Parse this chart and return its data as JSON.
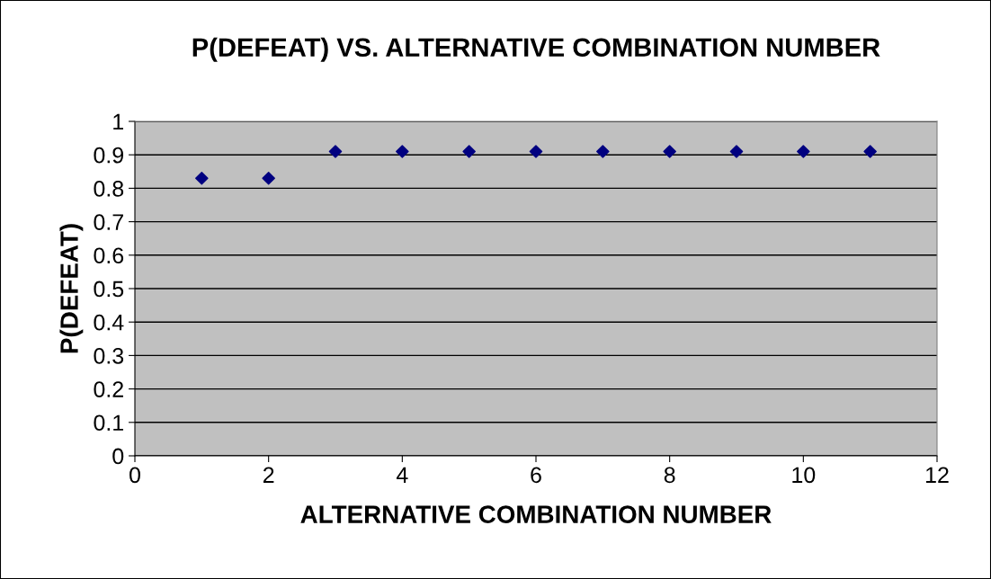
{
  "chart_data": {
    "type": "scatter",
    "title": "P(DEFEAT) VS. ALTERNATIVE COMBINATION NUMBER",
    "xlabel": "ALTERNATIVE COMBINATION NUMBER",
    "ylabel": "P(DEFEAT)",
    "x": [
      1,
      2,
      3,
      4,
      5,
      6,
      7,
      8,
      9,
      10,
      11
    ],
    "series": [
      {
        "color": "#000080",
        "values": [
          0.83,
          0.83,
          0.91,
          0.91,
          0.91,
          0.91,
          0.91,
          0.91,
          0.91,
          0.91,
          0.91
        ]
      }
    ],
    "xlim": [
      0,
      12
    ],
    "xticks": [
      0,
      2,
      4,
      6,
      8,
      10,
      12
    ],
    "ylim": [
      0,
      1
    ],
    "yticks": [
      0,
      0.1,
      0.2,
      0.3,
      0.4,
      0.5,
      0.6,
      0.7,
      0.8,
      0.9,
      1
    ],
    "grid": "y",
    "marker": "diamond",
    "legend": false
  }
}
